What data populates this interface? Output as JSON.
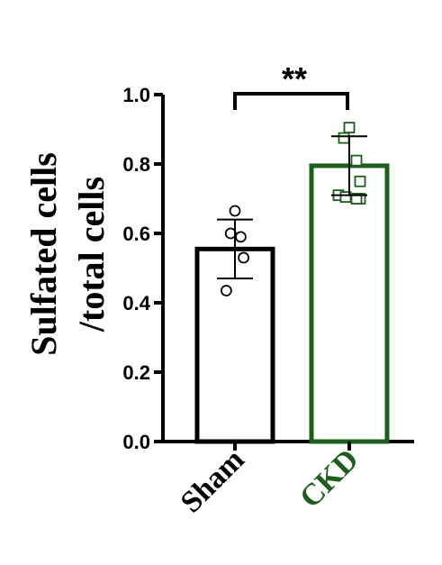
{
  "chart_data": {
    "type": "bar",
    "categories": [
      "Sham",
      "CKD"
    ],
    "ylabel": [
      "Sulfated cells",
      "/total cells"
    ],
    "ylim": [
      0,
      1.0
    ],
    "yticks": [
      "0.0",
      "0.2",
      "0.4",
      "0.6",
      "0.8",
      "1.0"
    ],
    "series": [
      {
        "values": [
          0.555,
          0.795
        ],
        "error": [
          0.085,
          0.085
        ],
        "colors": [
          "#000000",
          "#1d5e1d"
        ],
        "marker_shapes": [
          "circle",
          "square"
        ],
        "points": [
          [
            0.665,
            0.6,
            0.59,
            0.53,
            0.435
          ],
          [
            0.905,
            0.875,
            0.81,
            0.75,
            0.71,
            0.7,
            0.705,
            0.7
          ]
        ]
      }
    ],
    "significance": "**",
    "grid": false,
    "legend": "none"
  }
}
